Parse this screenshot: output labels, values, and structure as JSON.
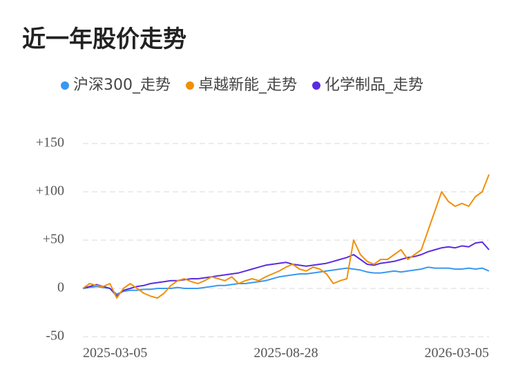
{
  "chart_data": {
    "type": "line",
    "title": "近一年股价走势",
    "categories": [
      "2025-03-05",
      null,
      null,
      null,
      null,
      null,
      null,
      null,
      null,
      null,
      null,
      null,
      null,
      null,
      null,
      null,
      null,
      null,
      null,
      null,
      null,
      null,
      null,
      null,
      null,
      null,
      null,
      null,
      null,
      null,
      "2025-08-28",
      null,
      null,
      null,
      null,
      null,
      null,
      null,
      null,
      null,
      null,
      null,
      null,
      null,
      null,
      null,
      null,
      null,
      null,
      null,
      null,
      null,
      null,
      null,
      null,
      null,
      null,
      null,
      null,
      null,
      "2026-03-05"
    ],
    "series": [
      {
        "name": "沪深300_走势",
        "color": "#3a97f0",
        "values": [
          0,
          1,
          2,
          1,
          0,
          -6,
          -3,
          -2,
          -2,
          -1,
          -1,
          0,
          0,
          0,
          1,
          0,
          0,
          0,
          1,
          2,
          3,
          3,
          4,
          5,
          5,
          6,
          7,
          8,
          10,
          12,
          13,
          14,
          15,
          15,
          16,
          17,
          18,
          19,
          20,
          21,
          20,
          19,
          17,
          16,
          16,
          17,
          18,
          17,
          18,
          19,
          20,
          22,
          21,
          21,
          21,
          20,
          20,
          21,
          20,
          21,
          18
        ]
      },
      {
        "name": "卓越新能_走势",
        "color": "#f0900a",
        "values": [
          0,
          5,
          3,
          2,
          5,
          -10,
          0,
          5,
          0,
          -5,
          -8,
          -10,
          -5,
          3,
          8,
          10,
          7,
          5,
          8,
          12,
          10,
          8,
          12,
          5,
          8,
          10,
          8,
          12,
          15,
          18,
          22,
          25,
          20,
          18,
          22,
          20,
          15,
          5,
          8,
          10,
          50,
          35,
          28,
          25,
          30,
          30,
          35,
          40,
          30,
          35,
          40,
          60,
          80,
          100,
          90,
          85,
          88,
          85,
          95,
          100,
          118
        ]
      },
      {
        "name": "化学制品_走势",
        "color": "#5a2be0",
        "values": [
          0,
          2,
          4,
          2,
          0,
          -8,
          -2,
          0,
          2,
          3,
          5,
          6,
          7,
          8,
          8,
          9,
          10,
          10,
          11,
          12,
          13,
          14,
          15,
          16,
          18,
          20,
          22,
          24,
          25,
          26,
          27,
          25,
          24,
          23,
          24,
          25,
          26,
          28,
          30,
          32,
          35,
          30,
          25,
          24,
          26,
          27,
          28,
          30,
          32,
          33,
          35,
          38,
          40,
          42,
          43,
          42,
          44,
          43,
          47,
          48,
          40
        ]
      }
    ],
    "ylim": [
      -50,
      150
    ],
    "yticks": [
      {
        "value": 150,
        "label": "+150"
      },
      {
        "value": 100,
        "label": "+100"
      },
      {
        "value": 50,
        "label": "+50"
      },
      0,
      -50
    ],
    "grid": true
  }
}
